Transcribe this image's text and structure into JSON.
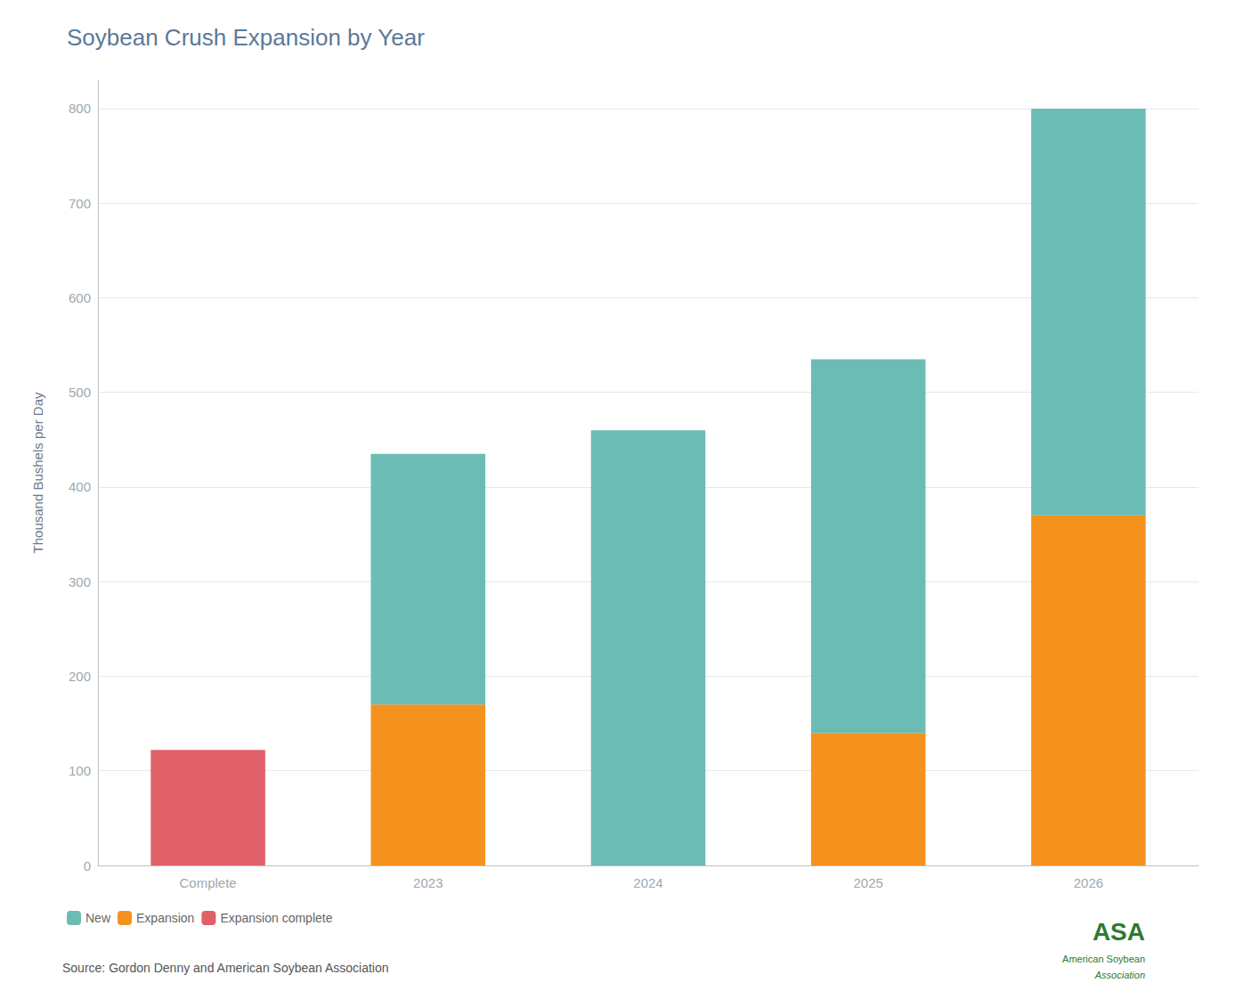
{
  "chart_data": {
    "type": "bar",
    "title": "Soybean Crush Expansion by Year",
    "ylabel": "Thousand Bushels per Day",
    "categories": [
      "Complete",
      "2023",
      "2024",
      "2025",
      "2026"
    ],
    "series": [
      {
        "name": "Expansion complete",
        "color": "#e0606a",
        "values": [
          122,
          0,
          0,
          0,
          0
        ]
      },
      {
        "name": "Expansion",
        "color": "#f5921e",
        "values": [
          0,
          170,
          0,
          140,
          370
        ]
      },
      {
        "name": "New",
        "color": "#6bbcb4",
        "values": [
          0,
          265,
          460,
          395,
          430
        ]
      }
    ],
    "stacked": true,
    "ylim": [
      0,
      830
    ],
    "yticks": [
      0,
      100,
      200,
      300,
      400,
      500,
      600,
      700,
      800
    ],
    "grid": true,
    "legend": "lower left",
    "annotations": [
      "Source: Gordon Denny and American Soybean Association",
      "ASA",
      "American Soybean",
      "Association"
    ]
  }
}
